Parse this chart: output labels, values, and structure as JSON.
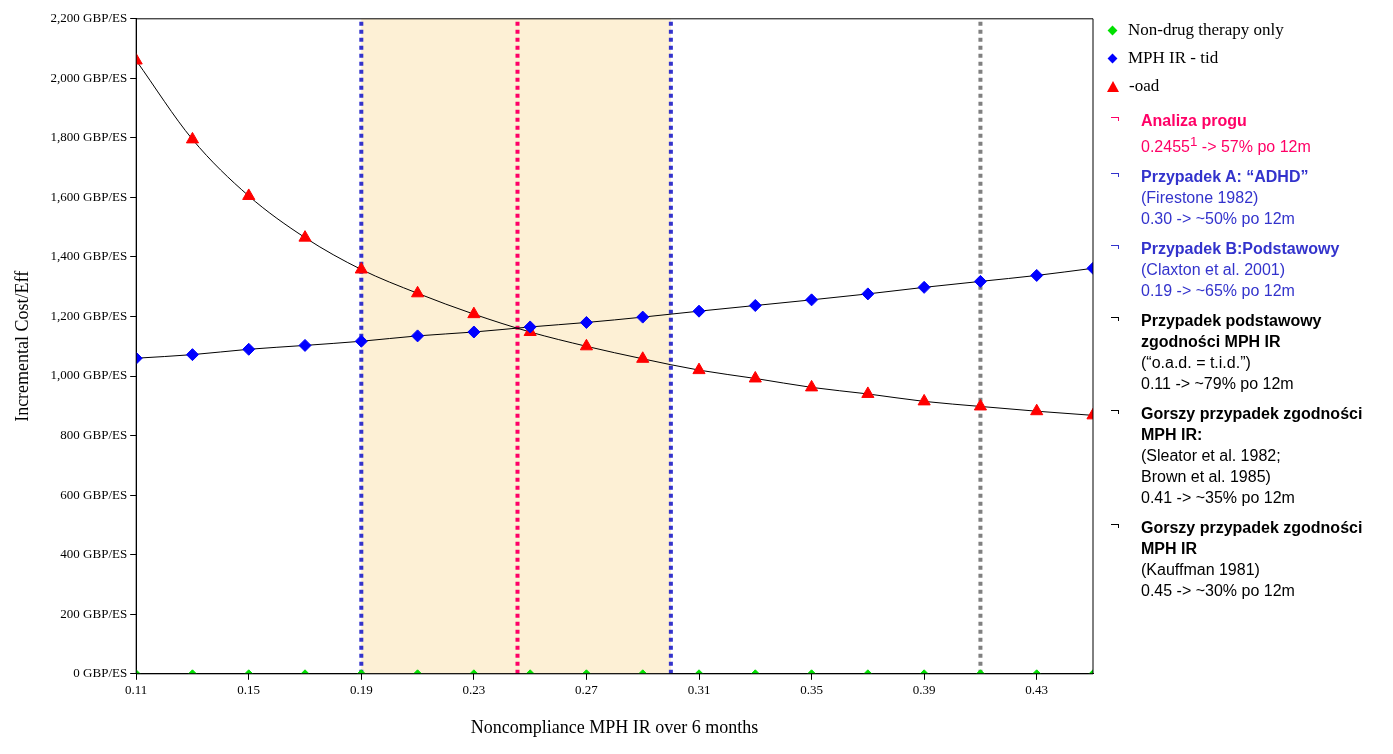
{
  "chart_data": {
    "type": "line",
    "xlabel": "Noncompliance MPH IR over 6 months",
    "ylabel": "Incremental Cost/Eff",
    "x": [
      0.11,
      0.13,
      0.15,
      0.17,
      0.19,
      0.21,
      0.23,
      0.25,
      0.27,
      0.29,
      0.31,
      0.33,
      0.35,
      0.37,
      0.39,
      0.41,
      0.43,
      0.45
    ],
    "series": [
      {
        "name": "Non-drug therapy only",
        "color": "#00e000",
        "marker": "diamond",
        "values": [
          0,
          0,
          0,
          0,
          0,
          0,
          0,
          0,
          0,
          0,
          0,
          0,
          0,
          0,
          0,
          0,
          0,
          0
        ]
      },
      {
        "name": "MPH IR - tid",
        "color": "#0000ff",
        "marker": "diamond",
        "values": [
          1060,
          1072,
          1090,
          1103,
          1117,
          1135,
          1148,
          1165,
          1180,
          1198,
          1218,
          1237,
          1256,
          1276,
          1298,
          1318,
          1338,
          1362
        ]
      },
      {
        "name": "-oad",
        "color": "#ff0000",
        "marker": "triangle",
        "values": [
          2060,
          1795,
          1605,
          1465,
          1358,
          1278,
          1208,
          1148,
          1100,
          1058,
          1020,
          992,
          962,
          940,
          915,
          898,
          882,
          868
        ]
      }
    ],
    "xlim": [
      0.11,
      0.45
    ],
    "xticks": [
      0.11,
      0.15,
      0.19,
      0.23,
      0.27,
      0.31,
      0.35,
      0.39,
      0.43
    ],
    "ylim": [
      0,
      2200
    ],
    "yticks": [
      {
        "value": 0,
        "label": "0 GBP/ES"
      },
      {
        "value": 200,
        "label": "200 GBP/ES"
      },
      {
        "value": 400,
        "label": "400 GBP/ES"
      },
      {
        "value": 600,
        "label": "600 GBP/ES"
      },
      {
        "value": 800,
        "label": "800 GBP/ES"
      },
      {
        "value": 1000,
        "label": "1,000 GBP/ES"
      },
      {
        "value": 1200,
        "label": "1,200 GBP/ES"
      },
      {
        "value": 1400,
        "label": "1,400 GBP/ES"
      },
      {
        "value": 1600,
        "label": "1,600 GBP/ES"
      },
      {
        "value": 1800,
        "label": "1,800 GBP/ES"
      },
      {
        "value": 2000,
        "label": "2,000 GBP/ES"
      },
      {
        "value": 2200,
        "label": "2,200 GBP/ES"
      }
    ],
    "grid": false,
    "legend": "right",
    "ref_lines": [
      {
        "axis": "x",
        "value": 0.19,
        "color": "#3333cc",
        "line_style": "dotted"
      },
      {
        "axis": "x",
        "value": 0.2455,
        "color": "#ff0066",
        "line_style": "dotted"
      },
      {
        "axis": "x",
        "value": 0.3,
        "color": "#3333cc",
        "line_style": "dotted"
      },
      {
        "axis": "x",
        "value": 0.41,
        "color": "#808080",
        "line_style": "dotted"
      }
    ],
    "bands": [
      {
        "axis": "x",
        "from": 0.19,
        "to": 0.3,
        "color": "#fdf0d5"
      }
    ],
    "annotations": [
      "Analiza progu\n0.2455$^{1}$ -> 57% po 12m",
      "Przypadek A: “ADHD”\n(Firestone 1982)\n0.30 -> ~50% po 12m",
      "Przypadek B:Podstawowy\n(Claxton et al. 2001)\n0.19 -> ~65% po 12m",
      "Przypadek podstawowy zgodności MPH IR\n(“o.a.d. = t.i.d.”)\n0.11 -> ~79% po 12m",
      "Gorszy przypadek zgodności MPH IR:\n(Sleator et al. 1982;\nBrown et al. 1985)\n0.41 -> ~35% po 12m",
      "Gorszy przypadek zgodności MPH IR\n(Kauffman 1981)\n0.45 -> ~30% po 12m"
    ]
  }
}
